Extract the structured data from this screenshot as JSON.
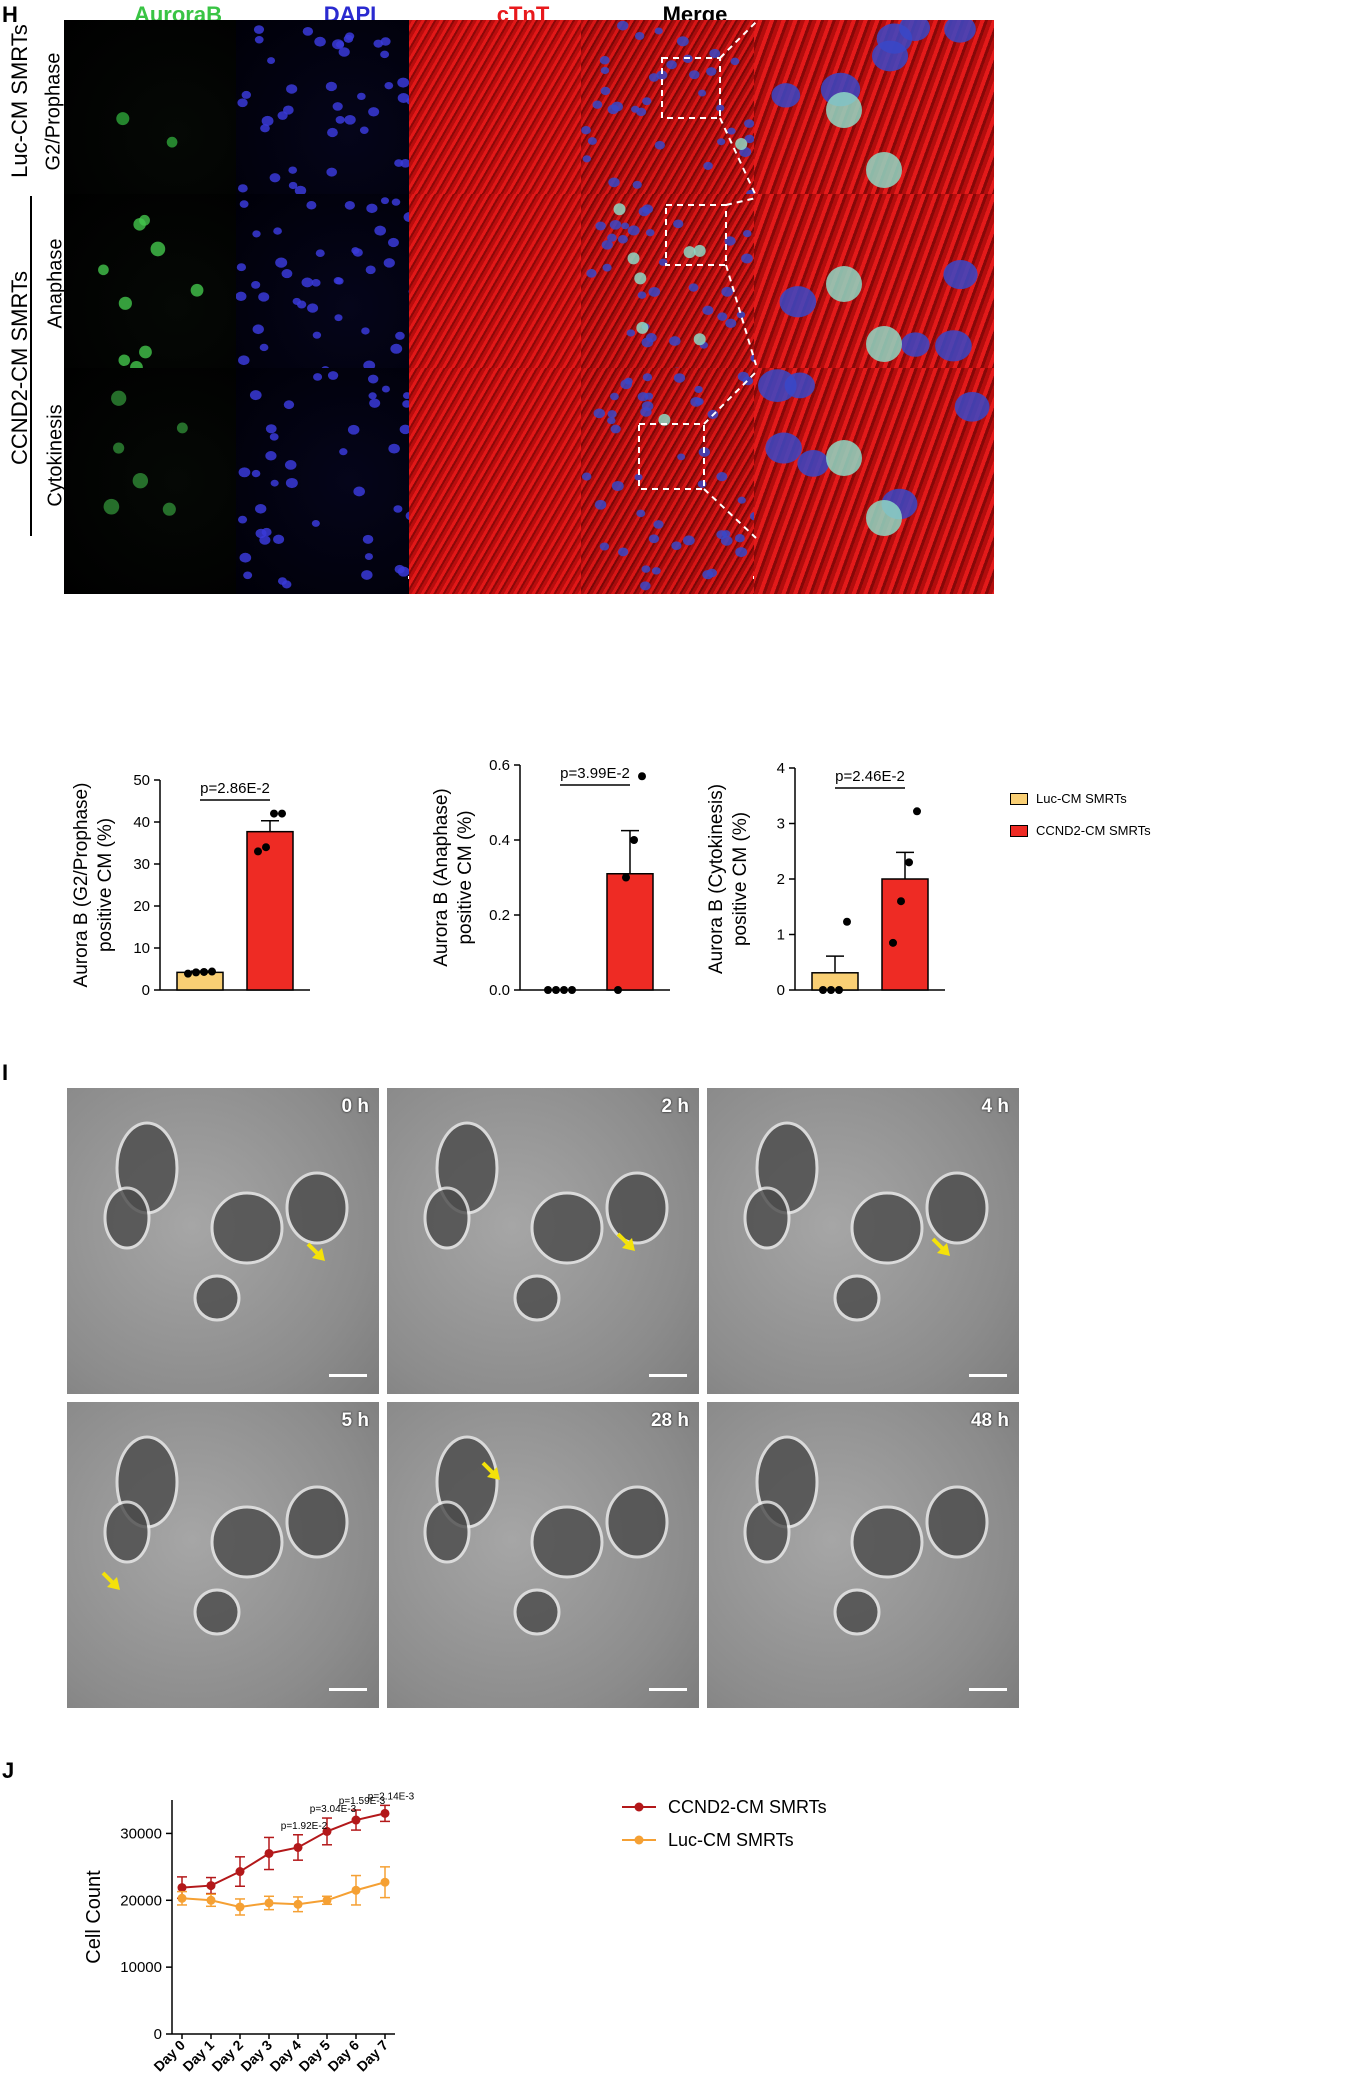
{
  "panelH": {
    "letter": "H",
    "columns": [
      "AuroraB",
      "DAPI",
      "cTnT",
      "Merge"
    ],
    "columnColors": [
      "#39c444",
      "#2a2ad0",
      "#e8191c",
      "#000000"
    ],
    "rowGroup1": "Luc-CM SMRTs",
    "rowGroup2": "CCND2-CM SMRTs",
    "rows": [
      "G2/Prophase",
      "Anaphase",
      "Cytokinesis"
    ]
  },
  "legendH": {
    "items": [
      {
        "label": "Luc-CM SMRTs",
        "color": "#f9cf74"
      },
      {
        "label": "CCND2-CM SMRTs",
        "color": "#ee2b24"
      }
    ]
  },
  "barcharts": [
    {
      "type": "bar",
      "ylabel1": "Aurora B (G2/Prophase)",
      "ylabel2": "positive CM (%)",
      "pvalue": "p=2.86E-2",
      "ylim": [
        0,
        50
      ],
      "ticks": [
        "0",
        "10",
        "20",
        "30",
        "40",
        "50"
      ],
      "tickValues": [
        0,
        10,
        20,
        30,
        40,
        50
      ],
      "bars": [
        {
          "value": 4.2,
          "sem": 0.3,
          "points": [
            3.9,
            4.2,
            4.3,
            4.4
          ]
        },
        {
          "value": 37.7,
          "sem": 2.6,
          "points": [
            33.0,
            34.0,
            42.0,
            42.0
          ]
        }
      ]
    },
    {
      "type": "bar",
      "ylabel1": "Aurora B (Anaphase)",
      "ylabel2": "positive CM (%)",
      "pvalue": "p=3.99E-2",
      "ylim": [
        0,
        0.6
      ],
      "ticks": [
        "0.0",
        "0.2",
        "0.4",
        "0.6"
      ],
      "tickValues": [
        0,
        0.2,
        0.4,
        0.6
      ],
      "bars": [
        {
          "value": 0.0,
          "sem": 0.0,
          "points": [
            0.0,
            0.0,
            0.0,
            0.0
          ]
        },
        {
          "value": 0.31,
          "sem": 0.115,
          "points": [
            0.0,
            0.3,
            0.4,
            0.57
          ]
        }
      ]
    },
    {
      "type": "bar",
      "ylabel1": "Aurora B (Cytokinesis)",
      "ylabel2": "positive CM (%)",
      "pvalue": "p=2.46E-2",
      "ylim": [
        0,
        4
      ],
      "ticks": [
        "0",
        "1",
        "2",
        "3",
        "4"
      ],
      "tickValues": [
        0,
        1,
        2,
        3,
        4
      ],
      "bars": [
        {
          "value": 0.31,
          "sem": 0.3,
          "points": [
            0.0,
            0.0,
            0.0,
            1.23
          ]
        },
        {
          "value": 2.0,
          "sem": 0.48,
          "points": [
            0.85,
            1.6,
            2.3,
            3.22
          ]
        }
      ]
    }
  ],
  "panelI": {
    "letter": "I",
    "timepoints": [
      "0 h",
      "2 h",
      "4 h",
      "5 h",
      "28 h",
      "48 h"
    ]
  },
  "chart_data": {
    "type": "line",
    "letter": "J",
    "ylabel": "Cell Count",
    "categories": [
      "Day 0",
      "Day 1",
      "Day 2",
      "Day 3",
      "Day 4",
      "Day 5",
      "Day 6",
      "Day 7"
    ],
    "ylim": [
      0,
      35000
    ],
    "yticks": [
      "0",
      "10000",
      "20000",
      "30000"
    ],
    "ytickValues": [
      0,
      10000,
      20000,
      30000
    ],
    "series": [
      {
        "name": "CCND2-CM SMRTs",
        "color": "#b3181a",
        "values": [
          21900,
          22200,
          24300,
          27000,
          27900,
          30300,
          32000,
          33000
        ],
        "errors": [
          1600,
          1200,
          2200,
          2400,
          1900,
          2000,
          1500,
          1200
        ]
      },
      {
        "name": "Luc-CM SMRTs",
        "color": "#f5a033",
        "values": [
          20300,
          20000,
          19000,
          19600,
          19400,
          20000,
          21500,
          22700
        ],
        "errors": [
          1000,
          900,
          1200,
          1000,
          1100,
          600,
          2200,
          2300
        ]
      }
    ],
    "annotations": [
      {
        "index": 4,
        "text": "p=1.92E-2"
      },
      {
        "index": 5,
        "text": "p=3.04E-3"
      },
      {
        "index": 6,
        "text": "p=1.59E-3"
      },
      {
        "index": 7,
        "text": "p=2.14E-3"
      }
    ]
  }
}
